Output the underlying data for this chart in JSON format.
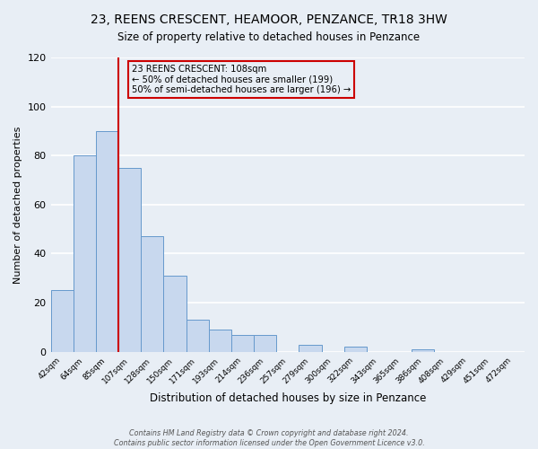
{
  "title": "23, REENS CRESCENT, HEAMOOR, PENZANCE, TR18 3HW",
  "subtitle": "Size of property relative to detached houses in Penzance",
  "xlabel": "Distribution of detached houses by size in Penzance",
  "ylabel": "Number of detached properties",
  "bin_labels": [
    "42sqm",
    "64sqm",
    "85sqm",
    "107sqm",
    "128sqm",
    "150sqm",
    "171sqm",
    "193sqm",
    "214sqm",
    "236sqm",
    "257sqm",
    "279sqm",
    "300sqm",
    "322sqm",
    "343sqm",
    "365sqm",
    "386sqm",
    "408sqm",
    "429sqm",
    "451sqm",
    "472sqm"
  ],
  "bar_heights": [
    25,
    80,
    90,
    75,
    47,
    31,
    13,
    9,
    7,
    7,
    0,
    3,
    0,
    2,
    0,
    0,
    1,
    0,
    0,
    0,
    0
  ],
  "bar_color": "#c8d8ee",
  "bar_edgecolor": "#6699cc",
  "vline_x_index": 3,
  "vline_color": "#cc0000",
  "ylim": [
    0,
    120
  ],
  "yticks": [
    0,
    20,
    40,
    60,
    80,
    100,
    120
  ],
  "annotation_line1": "23 REENS CRESCENT: 108sqm",
  "annotation_line2": "← 50% of detached houses are smaller (199)",
  "annotation_line3": "50% of semi-detached houses are larger (196) →",
  "annotation_box_color": "#cc0000",
  "footer_text": "Contains HM Land Registry data © Crown copyright and database right 2024.\nContains public sector information licensed under the Open Government Licence v3.0.",
  "background_color": "#e8eef5",
  "grid_color": "#ffffff",
  "title_fontsize": 10,
  "subtitle_fontsize": 9
}
